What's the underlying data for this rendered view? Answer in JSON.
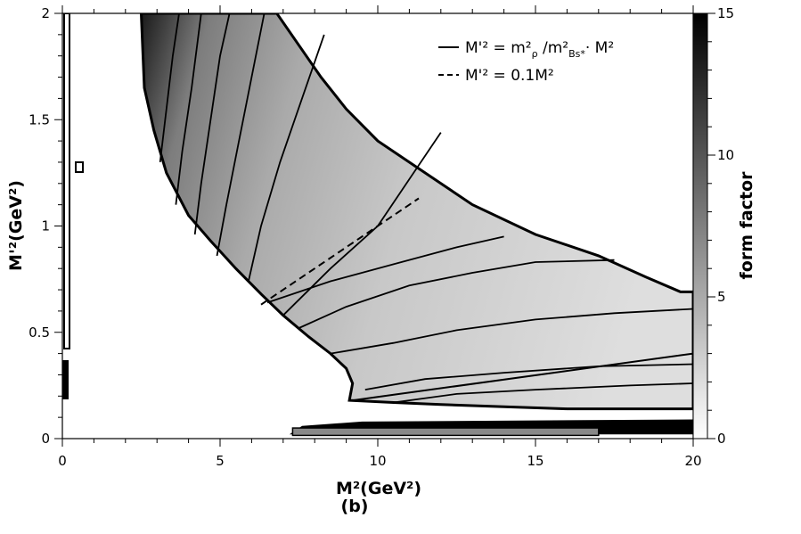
{
  "chart_data": {
    "type": "heatmap",
    "caption": "(b)",
    "xlabel": "M²(GeV²)",
    "ylabel": "M'²(GeV²)",
    "colorbar_label": "form factor",
    "xlim": [
      0,
      20
    ],
    "ylim": [
      0,
      2
    ],
    "colorbar_range": [
      0,
      15
    ],
    "x_ticks": [
      "0",
      "5",
      "10",
      "15",
      "20"
    ],
    "y_ticks": [
      "0",
      "0.5",
      "1",
      "1.5",
      "2"
    ],
    "colorbar_ticks": [
      "0",
      "5",
      "10",
      "15"
    ],
    "colormap": {
      "low": "#ffffff",
      "high": "#000000"
    },
    "legend": {
      "position": "top-right",
      "entries": [
        {
          "style": "solid",
          "text_main": "M'² = m²",
          "sub1": "ρ",
          "mid": " /m²",
          "sub2": "Bs*",
          "tail": "· M²"
        },
        {
          "style": "dashed",
          "text_main": "M'² = 0.1M²"
        }
      ]
    },
    "series": [
      {
        "style": "solid",
        "points": [
          [
            9.2,
            0.18
          ],
          [
            20.0,
            0.4
          ]
        ]
      },
      {
        "style": "dashed",
        "points": [
          [
            6.3,
            0.63
          ],
          [
            11.3,
            1.13
          ]
        ]
      }
    ],
    "region_boundary": {
      "upper": [
        [
          6.8,
          2.0
        ],
        [
          7.5,
          1.85
        ],
        [
          8.2,
          1.7
        ],
        [
          9.0,
          1.55
        ],
        [
          10.0,
          1.4
        ],
        [
          11.5,
          1.25
        ],
        [
          13.0,
          1.1
        ],
        [
          15.0,
          0.96
        ],
        [
          17.0,
          0.86
        ],
        [
          18.5,
          0.76
        ],
        [
          19.6,
          0.69
        ],
        [
          20.0,
          0.69
        ]
      ],
      "lower_left": [
        [
          2.5,
          2.0
        ],
        [
          2.6,
          1.65
        ],
        [
          2.9,
          1.45
        ],
        [
          3.3,
          1.25
        ],
        [
          4.0,
          1.05
        ],
        [
          4.7,
          0.93
        ],
        [
          5.5,
          0.8
        ],
        [
          6.3,
          0.68
        ],
        [
          7.0,
          0.58
        ],
        [
          7.8,
          0.48
        ],
        [
          8.5,
          0.4
        ],
        [
          9.0,
          0.33
        ],
        [
          9.2,
          0.26
        ],
        [
          9.1,
          0.18
        ],
        [
          10.5,
          0.17
        ],
        [
          12.0,
          0.16
        ],
        [
          14.0,
          0.15
        ],
        [
          16.0,
          0.14
        ],
        [
          18.0,
          0.14
        ],
        [
          20.0,
          0.14
        ]
      ]
    },
    "contours": [
      [
        [
          7.0,
          0.58
        ],
        [
          8.5,
          0.8
        ],
        [
          10.0,
          1.0
        ],
        [
          11.0,
          1.22
        ],
        [
          12.0,
          1.44
        ]
      ],
      [
        [
          6.5,
          0.64
        ],
        [
          8.5,
          0.74
        ],
        [
          10.5,
          0.82
        ],
        [
          12.5,
          0.9
        ],
        [
          14.0,
          0.95
        ]
      ],
      [
        [
          7.5,
          0.52
        ],
        [
          9.0,
          0.62
        ],
        [
          11.0,
          0.72
        ],
        [
          13.0,
          0.78
        ],
        [
          15.0,
          0.83
        ],
        [
          17.5,
          0.84
        ]
      ],
      [
        [
          8.5,
          0.4
        ],
        [
          10.5,
          0.45
        ],
        [
          12.5,
          0.51
        ],
        [
          15.0,
          0.56
        ],
        [
          17.5,
          0.59
        ],
        [
          20.0,
          0.61
        ]
      ],
      [
        [
          9.6,
          0.23
        ],
        [
          11.5,
          0.28
        ],
        [
          14.0,
          0.31
        ],
        [
          17.0,
          0.34
        ],
        [
          20.0,
          0.35
        ]
      ],
      [
        [
          10.5,
          0.17
        ],
        [
          12.5,
          0.21
        ],
        [
          15.0,
          0.23
        ],
        [
          18.0,
          0.25
        ],
        [
          20.0,
          0.26
        ]
      ],
      [
        [
          5.9,
          0.74
        ],
        [
          6.3,
          1.0
        ],
        [
          6.9,
          1.3
        ],
        [
          7.6,
          1.6
        ],
        [
          8.3,
          1.9
        ]
      ],
      [
        [
          4.9,
          0.86
        ],
        [
          5.2,
          1.1
        ],
        [
          5.6,
          1.4
        ],
        [
          6.0,
          1.7
        ],
        [
          6.4,
          2.0
        ]
      ],
      [
        [
          4.2,
          0.96
        ],
        [
          4.4,
          1.2
        ],
        [
          4.7,
          1.5
        ],
        [
          5.0,
          1.8
        ],
        [
          5.3,
          2.0
        ]
      ],
      [
        [
          3.6,
          1.1
        ],
        [
          3.8,
          1.35
        ],
        [
          4.1,
          1.65
        ],
        [
          4.4,
          2.0
        ]
      ],
      [
        [
          3.1,
          1.3
        ],
        [
          3.3,
          1.55
        ],
        [
          3.5,
          1.8
        ],
        [
          3.7,
          2.0
        ]
      ]
    ],
    "bottom_band": [
      [
        7.2,
        0.02
      ],
      [
        7.6,
        0.06
      ],
      [
        9.5,
        0.08
      ],
      [
        20.0,
        0.09
      ]
    ]
  }
}
